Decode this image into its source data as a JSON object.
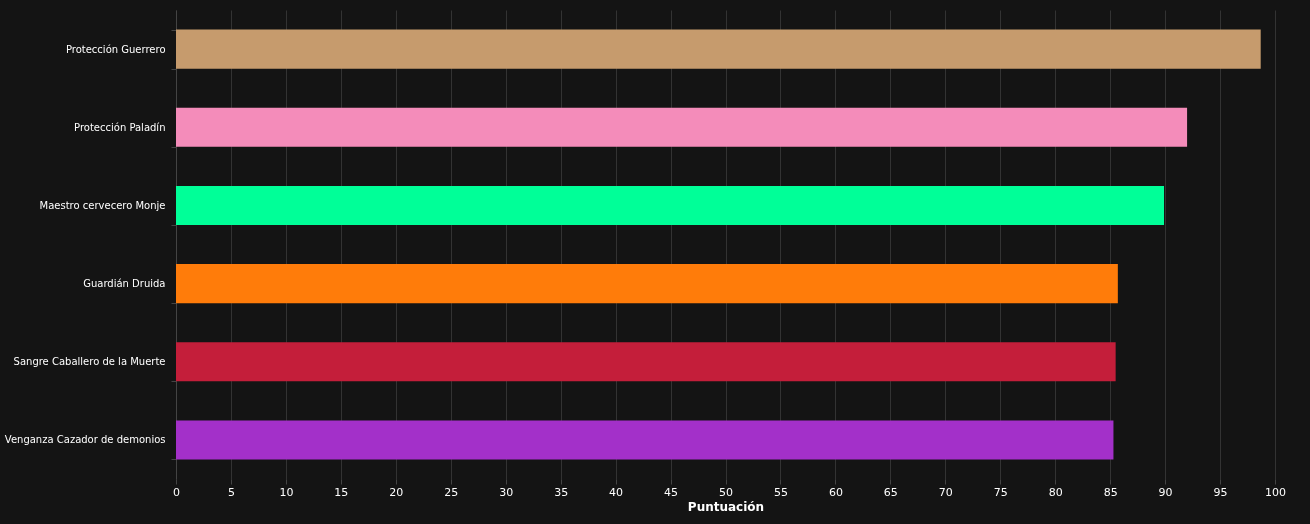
{
  "chart_data": {
    "type": "bar",
    "orientation": "horizontal",
    "xlabel": "Puntuación",
    "categories": [
      "Protección Guerrero",
      "Protección Paladín",
      "Maestro cervecero Monje",
      "Guardián Druida",
      "Sangre Caballero de la Muerte",
      "Venganza Cazador de demonios"
    ],
    "values": [
      98.7,
      92.0,
      89.9,
      85.7,
      85.5,
      85.3
    ],
    "colors": [
      "#c69b6d",
      "#f48cba",
      "#00ff98",
      "#ff7c0a",
      "#c41e3a",
      "#a330c9"
    ],
    "xlim": [
      0,
      100
    ],
    "xticks": [
      0,
      5,
      10,
      15,
      20,
      25,
      30,
      35,
      40,
      45,
      50,
      55,
      60,
      65,
      70,
      75,
      80,
      85,
      90,
      95,
      100
    ],
    "grid": "x"
  }
}
